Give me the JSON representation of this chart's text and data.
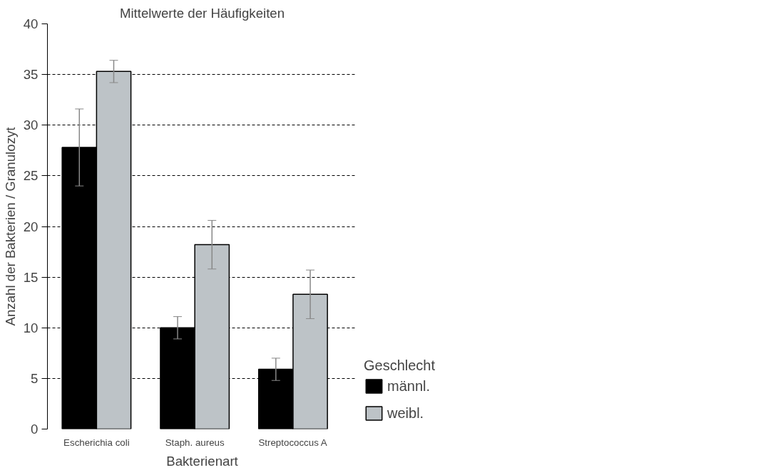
{
  "chart_data": {
    "type": "bar",
    "title": "Mittelwerte der Häufigkeiten",
    "xlabel": "Bakterienart",
    "ylabel": "Anzahl der Bakterien / Granulozyt",
    "categories": [
      "Escherichia coli",
      "Staph. aureus",
      "Streptococcus A"
    ],
    "legend_title": "Geschlecht",
    "series": [
      {
        "name": "männl.",
        "color": "#000000",
        "values": [
          27.8,
          10.0,
          5.9
        ],
        "errors": [
          3.8,
          1.1,
          1.1
        ]
      },
      {
        "name": "weibl.",
        "color": "#bdc3c7",
        "values": [
          35.3,
          18.2,
          13.3
        ],
        "errors": [
          1.1,
          2.4,
          2.4
        ]
      }
    ],
    "ylim": [
      0,
      40
    ],
    "yticks": [
      0,
      5,
      10,
      15,
      20,
      25,
      30,
      35,
      40
    ],
    "grid": "y",
    "legend": "right"
  }
}
